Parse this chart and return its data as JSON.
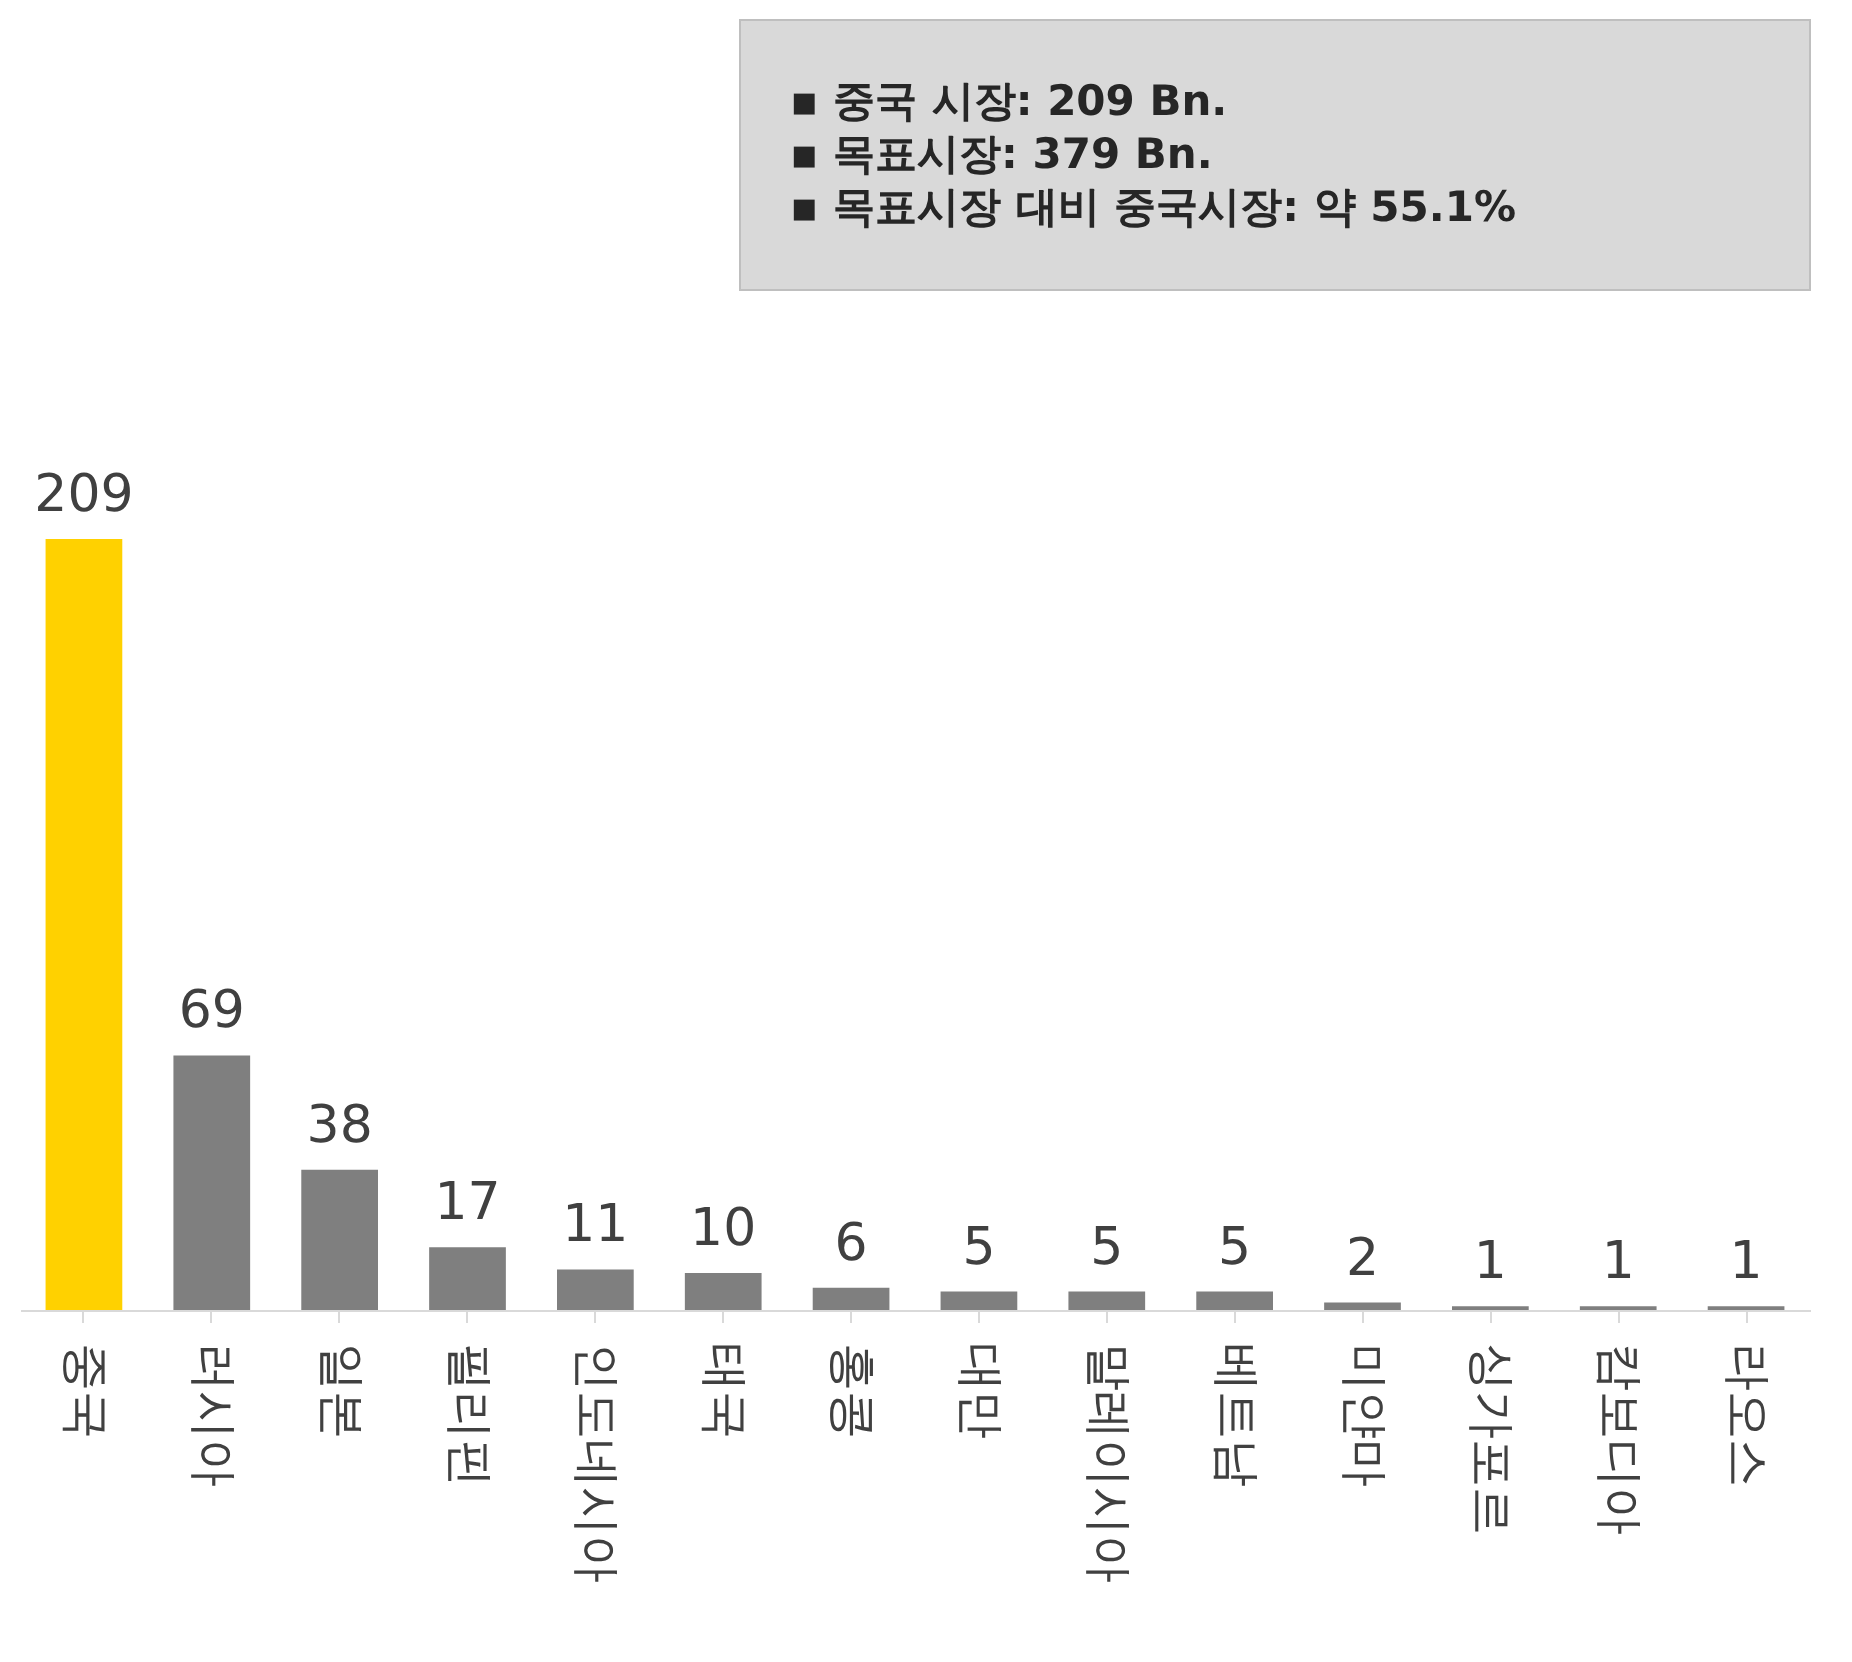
{
  "chart_data": {
    "type": "bar",
    "categories": [
      "중국",
      "러시아",
      "일본",
      "필리핀",
      "인도네시아",
      "태국",
      "홍콩",
      "대만",
      "말레이시아",
      "베트남",
      "미얀마",
      "싱가포르",
      "캄보디아",
      "라오스"
    ],
    "values": [
      209,
      69,
      38,
      17,
      11,
      10,
      6,
      5,
      5,
      5,
      2,
      1,
      1,
      1
    ],
    "colors": [
      "#ffd100",
      "#7f7f7f",
      "#7f7f7f",
      "#7f7f7f",
      "#7f7f7f",
      "#7f7f7f",
      "#7f7f7f",
      "#7f7f7f",
      "#7f7f7f",
      "#7f7f7f",
      "#7f7f7f",
      "#7f7f7f",
      "#7f7f7f",
      "#7f7f7f"
    ],
    "data_labels": true,
    "annotations": [
      "▪  중국 시장: 209 Bn.",
      "▪  목표시장: 379 Bn.",
      "▪  목표시장 대비 중국시장: 약 55.1%"
    ]
  }
}
